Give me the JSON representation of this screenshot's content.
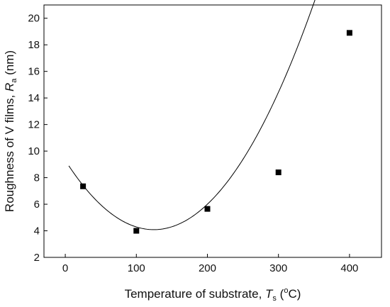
{
  "chart_data": {
    "type": "scatter",
    "xlabel": {
      "main": "Temperature of substrate, ",
      "var": "T",
      "sub": "s",
      "unit_open": " (",
      "sup": "o",
      "unit_close": "C)"
    },
    "ylabel": {
      "main": "Roughness of V films, ",
      "var": "R",
      "sub": "a",
      "unit": " (nm)"
    },
    "xlim": [
      -30,
      445
    ],
    "ylim": [
      2,
      21
    ],
    "xticks": [
      0,
      100,
      200,
      300,
      400
    ],
    "yticks": [
      2,
      4,
      6,
      8,
      10,
      12,
      14,
      16,
      18,
      20
    ],
    "x_tick_labels": [
      "0",
      "100",
      "200",
      "300",
      "400"
    ],
    "y_tick_labels": [
      "2",
      "4",
      "6",
      "8",
      "10",
      "12",
      "14",
      "16",
      "18",
      "20"
    ],
    "grid": false,
    "series": [
      {
        "marker": "square",
        "color": "#000000",
        "points": [
          [
            25,
            7.35
          ],
          [
            100,
            4.0
          ],
          [
            200,
            5.65
          ],
          [
            300,
            8.4
          ],
          [
            400,
            18.9
          ]
        ]
      }
    ],
    "fit_curve": {
      "color": "#000000",
      "x_range": [
        5,
        425
      ],
      "coefficients": {
        "a": 9.3,
        "b": -0.0837,
        "c": 0.000336
      }
    }
  }
}
